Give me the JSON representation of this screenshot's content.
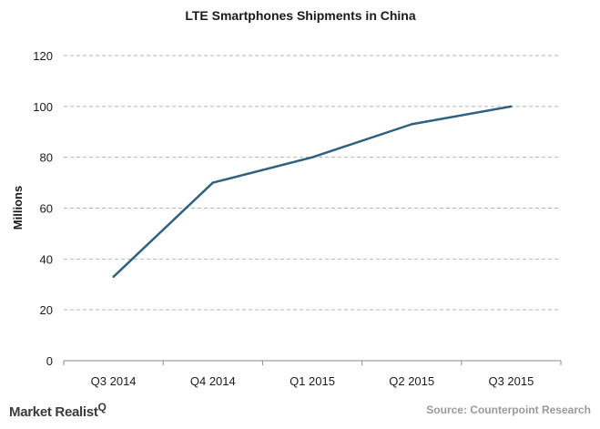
{
  "chart_data": {
    "type": "line",
    "title": "LTE Smartphones Shipments in China",
    "xlabel": "",
    "ylabel": "Millions",
    "categories": [
      "Q3 2014",
      "Q4 2014",
      "Q1 2015",
      "Q2 2015",
      "Q3 2015"
    ],
    "series": [
      {
        "name": "LTE Smartphones Shipments",
        "values": [
          33,
          70,
          80,
          93,
          100
        ]
      }
    ],
    "ylim": [
      0,
      120
    ],
    "yticks": [
      0,
      20,
      40,
      60,
      80,
      100,
      120
    ],
    "grid": true,
    "line_color": "#2f6180"
  },
  "footer": {
    "brand": "Market Realist",
    "brand_mark": "Q",
    "source": "Source: Counterpoint Research"
  }
}
